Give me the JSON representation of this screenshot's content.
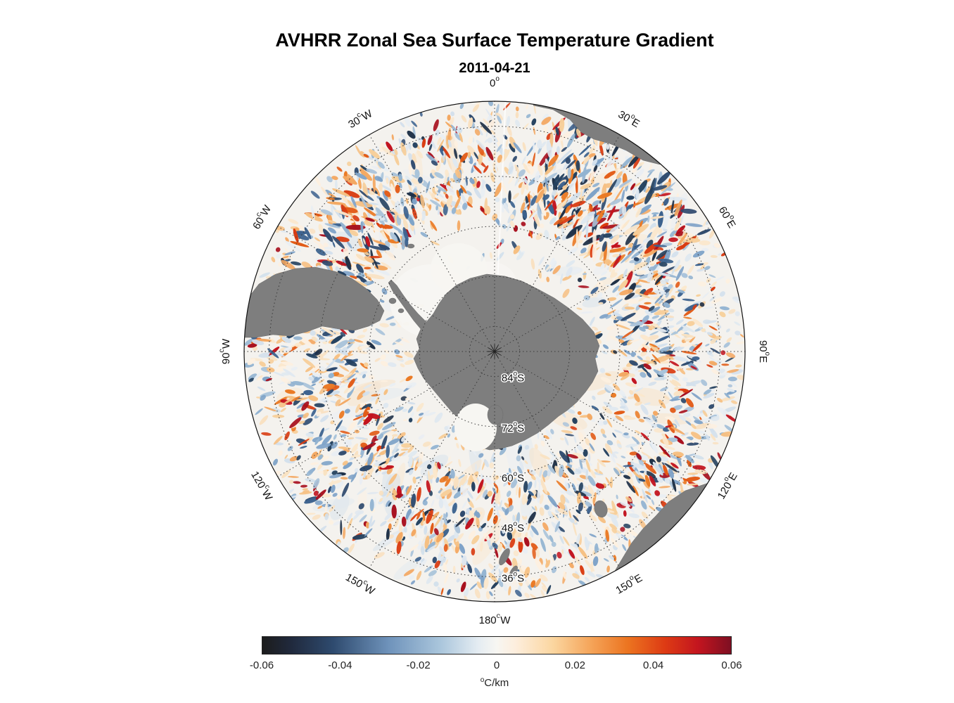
{
  "figure": {
    "title": "AVHRR Zonal Sea Surface Temperature Gradient",
    "subtitle": "2011-04-21"
  },
  "chart_data": {
    "type": "heatmap",
    "title": "AVHRR Zonal Sea Surface Temperature Gradient",
    "date": "2011-04-21",
    "projection": "south polar stereographic",
    "variable": "zonal sea surface temperature gradient",
    "value_range": [
      -0.06,
      0.06
    ],
    "deg_symbol": "o",
    "meridian_labels": [
      {
        "az": 0,
        "num": "0",
        "hemi": ""
      },
      {
        "az": 30,
        "num": "30",
        "hemi": "E"
      },
      {
        "az": 60,
        "num": "60",
        "hemi": "E"
      },
      {
        "az": 90,
        "num": "90",
        "hemi": "E"
      },
      {
        "az": 120,
        "num": "120",
        "hemi": "E"
      },
      {
        "az": 150,
        "num": "150",
        "hemi": "E"
      },
      {
        "az": 180,
        "num": "180",
        "hemi": "W"
      },
      {
        "az": 210,
        "num": "150",
        "hemi": "W"
      },
      {
        "az": 240,
        "num": "120",
        "hemi": "W"
      },
      {
        "az": 270,
        "num": "90",
        "hemi": "W"
      },
      {
        "az": 300,
        "num": "60",
        "hemi": "W"
      },
      {
        "az": 330,
        "num": "30",
        "hemi": "W"
      }
    ],
    "parallel_labels": [
      {
        "rf": 0.1,
        "num": "84",
        "hemi": "S"
      },
      {
        "rf": 0.3,
        "num": "72",
        "hemi": "S"
      },
      {
        "rf": 0.5,
        "num": "60",
        "hemi": "S"
      },
      {
        "rf": 0.7,
        "num": "48",
        "hemi": "S"
      },
      {
        "rf": 0.9,
        "num": "36",
        "hemi": "S"
      }
    ],
    "colorbar": {
      "tick_labels": [
        "-0.06",
        "-0.04",
        "-0.02",
        "0",
        "0.02",
        "0.04",
        "0.06"
      ],
      "units_sup": "o",
      "units_text": "C/km",
      "stops": [
        {
          "pos": 0.0,
          "color": "#1c1c1c"
        },
        {
          "pos": 0.06,
          "color": "#20293c"
        },
        {
          "pos": 0.15,
          "color": "#2e4a6e"
        },
        {
          "pos": 0.27,
          "color": "#6f93bb"
        },
        {
          "pos": 0.38,
          "color": "#aac6dc"
        },
        {
          "pos": 0.46,
          "color": "#e4ecf2"
        },
        {
          "pos": 0.5,
          "color": "#f7f6f2"
        },
        {
          "pos": 0.54,
          "color": "#fdeedd"
        },
        {
          "pos": 0.62,
          "color": "#fbd6a0"
        },
        {
          "pos": 0.7,
          "color": "#f5a55a"
        },
        {
          "pos": 0.78,
          "color": "#ec7420"
        },
        {
          "pos": 0.86,
          "color": "#dd3a14"
        },
        {
          "pos": 0.93,
          "color": "#c3151f"
        },
        {
          "pos": 1.0,
          "color": "#7e0f22"
        }
      ]
    },
    "colors": {
      "ocean": "#f4f2ee",
      "land": "#7e7e7e",
      "ice": "#f7f6f2",
      "grid": "#3a3a3a",
      "outline": "#111111"
    },
    "landmasses": [
      "antarctica",
      "south-america",
      "africa",
      "australia",
      "tasmania",
      "new-zealand"
    ]
  }
}
